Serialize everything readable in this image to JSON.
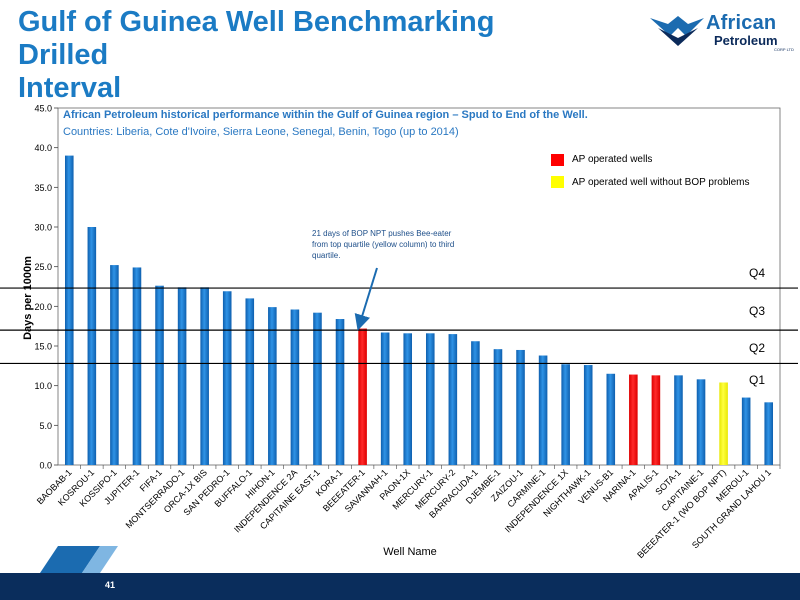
{
  "slide": {
    "title_line1": "Gulf of Guinea Well Benchmarking Drilled",
    "title_line2": "Interval",
    "page_number": "41"
  },
  "logo": {
    "name_line1": "African",
    "name_line2": "Petroleum",
    "suffix": "CORP LTD",
    "brand_color": "#1b6bb0"
  },
  "chart_data": {
    "type": "bar",
    "title": "African Petroleum historical performance within the Gulf of Guinea region – Spud to End of the Well.",
    "subtitle": "Countries: Liberia, Cote d'Ivoire, Sierra Leone, Senegal, Benin, Togo (up to 2014)",
    "xlabel": "Well Name",
    "ylabel": "Days per 1000m",
    "ylim": [
      0,
      45
    ],
    "yticks": [
      "0.0",
      "5.0",
      "10.0",
      "15.0",
      "20.0",
      "25.0",
      "30.0",
      "35.0",
      "40.0",
      "45.0"
    ],
    "categories": [
      "BAOBAB-1",
      "KOSROU-1",
      "KOSSIPO-1",
      "JUPITER-1",
      "FIFA-1",
      "MONTSERRADO-1",
      "ORCA-1X BIS",
      "SAN PEDRO-1",
      "BUFFALO-1",
      "HIHON-1",
      "INDEPENDENCE 2A",
      "CAPITAINE EAST-1",
      "KORA-1",
      "BEEEATER-1",
      "SAVANNAH-1",
      "PAON-1X",
      "MERCURY-1",
      "MERCURY-2",
      "BARRACUDA-1",
      "DJEMBE-1",
      "ZAIZOU-1",
      "CARMINE-1",
      "INDEPENDENCE 1X",
      "NIGHTHAWK-1",
      "VENUS-B1",
      "NARINA-1",
      "APALIS-1",
      "SOTA-1",
      "CAPITAINE-1",
      "BEEEATER-1 (WO BOP NPT)",
      "MEROU-1",
      "SOUTH GRAND LAHOU 1"
    ],
    "values": [
      39.0,
      30.0,
      25.2,
      24.9,
      22.6,
      22.4,
      22.4,
      21.9,
      21.0,
      19.9,
      19.6,
      19.2,
      18.4,
      17.2,
      16.7,
      16.6,
      16.6,
      16.5,
      15.6,
      14.6,
      14.5,
      13.8,
      12.7,
      12.6,
      11.5,
      11.4,
      11.3,
      11.3,
      10.8,
      10.4,
      8.5,
      7.9
    ],
    "bar_colors": [
      "blue",
      "blue",
      "blue",
      "blue",
      "blue",
      "blue",
      "blue",
      "blue",
      "blue",
      "blue",
      "blue",
      "blue",
      "blue",
      "red",
      "blue",
      "blue",
      "blue",
      "blue",
      "blue",
      "blue",
      "blue",
      "blue",
      "blue",
      "blue",
      "blue",
      "red",
      "red",
      "blue",
      "blue",
      "yellow",
      "blue",
      "blue"
    ],
    "colors": {
      "blue": "#1f7fd6",
      "red": "#ff0000",
      "yellow": "#ffff00"
    },
    "legend": [
      {
        "label": "AP operated wells",
        "color": "#ff0000"
      },
      {
        "label": "AP operated well without BOP problems",
        "color": "#ffff00"
      }
    ],
    "legend_position": "top-right",
    "grid": false,
    "quartile_lines": [
      {
        "label": "Q4",
        "value": 22.3
      },
      {
        "label": "Q3",
        "value": 17.0
      },
      {
        "label": "Q2",
        "value": 12.8
      }
    ],
    "quartile_extra_label": "Q1",
    "annotation": {
      "text": "21 days of BOP NPT pushes Bee-eater from top quartile (yellow column) to third quartile.",
      "target_category": "BEEEATER-1"
    }
  }
}
